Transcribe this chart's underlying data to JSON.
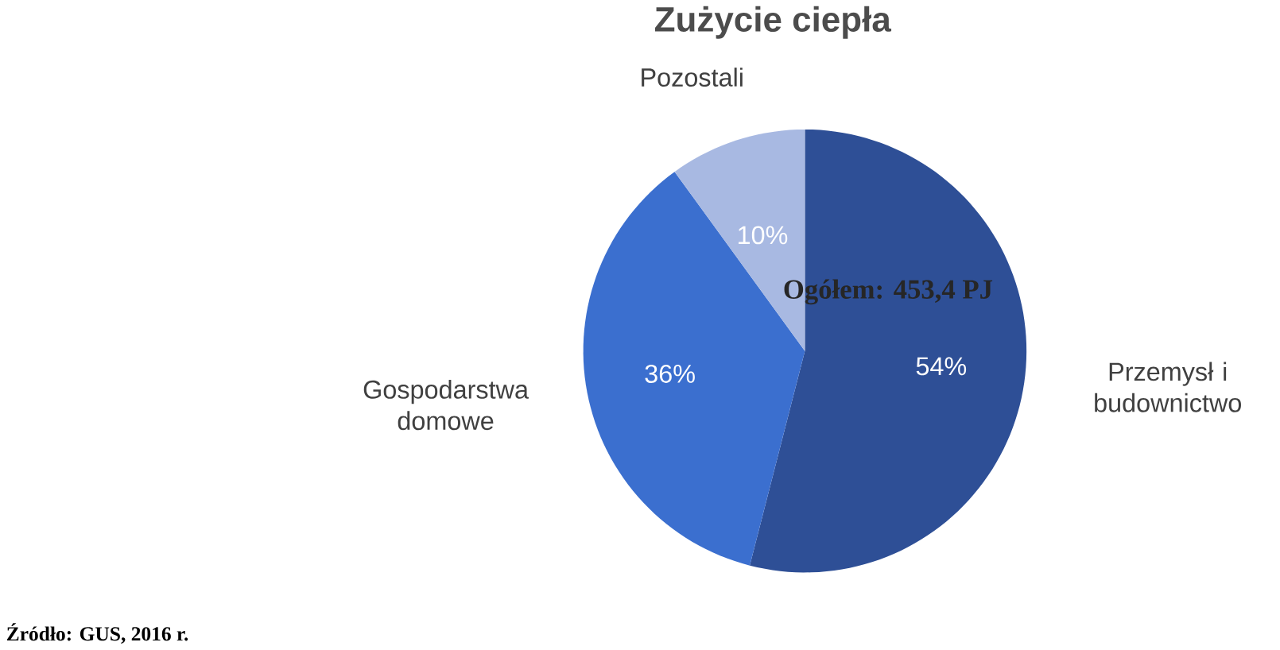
{
  "chart_data": {
    "type": "pie",
    "title": "Zużycie ciepła",
    "categories": [
      "Przemysł i budownictwo",
      "Gospodarstwa domowe",
      "Pozostali"
    ],
    "values": [
      54,
      36,
      10
    ],
    "colors": [
      "#2e4f96",
      "#3b6fcf",
      "#a8b9e2"
    ],
    "value_labels": [
      "54%",
      "36%",
      "10%"
    ],
    "annotations": [
      "Ogółem: 453,4 PJ",
      "Źródło: GUS, 2016 r."
    ]
  }
}
